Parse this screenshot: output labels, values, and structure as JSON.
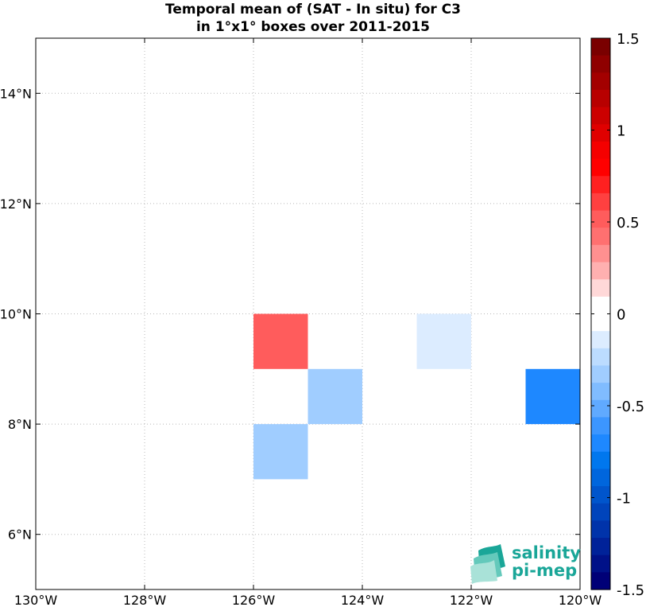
{
  "chart_data": {
    "type": "heatmap",
    "title_lines": [
      "Temporal mean of (SAT - In situ) for C3",
      "in 1°x1° boxes over 2011-2015"
    ],
    "xlim": [
      -130,
      -120
    ],
    "ylim": [
      5,
      15
    ],
    "x_ticks": [
      -130,
      -128,
      -126,
      -124,
      -122,
      -120
    ],
    "x_tick_labels": [
      "130°W",
      "128°W",
      "126°W",
      "124°W",
      "122°W",
      "120°W"
    ],
    "y_ticks": [
      6,
      8,
      10,
      12,
      14
    ],
    "y_tick_labels": [
      "6°N",
      "8°N",
      "10°N",
      "12°N",
      "14°N"
    ],
    "grid": true,
    "cells": [
      {
        "lon": [
          -126,
          -125
        ],
        "lat": [
          9,
          10
        ],
        "value": 0.55
      },
      {
        "lon": [
          -123,
          -122
        ],
        "lat": [
          9,
          10
        ],
        "value": -0.15
      },
      {
        "lon": [
          -125,
          -124
        ],
        "lat": [
          8,
          9
        ],
        "value": -0.3
      },
      {
        "lon": [
          -121,
          -120
        ],
        "lat": [
          8,
          9
        ],
        "value": -0.7
      },
      {
        "lon": [
          -126,
          -125
        ],
        "lat": [
          7,
          8
        ],
        "value": -0.3
      }
    ],
    "colorbar": {
      "range": [
        -1.5,
        1.5
      ],
      "ticks": [
        1.5,
        1,
        0.5,
        0,
        -0.5,
        -1,
        -1.5
      ],
      "tick_labels": [
        "1.5",
        "1",
        "0.5",
        "0",
        "-0.5",
        "-1",
        "-1.5"
      ],
      "colors_top_to_bottom": [
        "#7a0000",
        "#8f0000",
        "#a30000",
        "#b80000",
        "#cc0000",
        "#e00000",
        "#f50000",
        "#ff0000",
        "#ff2020",
        "#ff4040",
        "#ff5c5c",
        "#ff7070",
        "#ff9090",
        "#ffb0b0",
        "#ffd8d8",
        "#ffffff",
        "#ffffff",
        "#dcecff",
        "#bcdcff",
        "#a0cdff",
        "#80bcff",
        "#60aaff",
        "#3c96ff",
        "#1e88ff",
        "#0077ee",
        "#0066dd",
        "#0055cc",
        "#0044bb",
        "#0033aa",
        "#002299",
        "#001188",
        "#000077"
      ]
    }
  },
  "logo": {
    "line1": "salinity",
    "line2": "pi-mep",
    "color": "#1aa698"
  }
}
